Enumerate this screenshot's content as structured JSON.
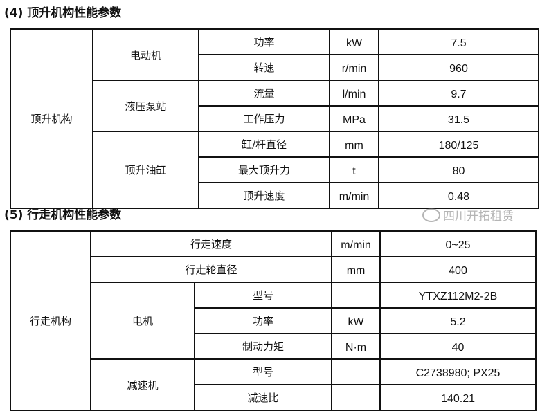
{
  "section4": {
    "title": "(4)  顶升机构性能参数",
    "group": "顶升机构",
    "subgroups": [
      "电动机",
      "液压泵站",
      "顶升油缸"
    ],
    "rows": [
      {
        "param": "功率",
        "unit": "kW",
        "value": "7.5"
      },
      {
        "param": "转速",
        "unit": "r/min",
        "value": "960"
      },
      {
        "param": "流量",
        "unit": "l/min",
        "value": "9.7"
      },
      {
        "param": "工作压力",
        "unit": "MPa",
        "value": "31.5"
      },
      {
        "param": "缸/杆直径",
        "unit": "mm",
        "value": "180/125"
      },
      {
        "param": "最大顶升力",
        "unit": "t",
        "value": "80"
      },
      {
        "param": "顶升速度",
        "unit": "m/min",
        "value": "0.48"
      }
    ]
  },
  "section5": {
    "title": "(5)  行走机构性能参数",
    "group": "行走机构",
    "subgroups": [
      "电机",
      "减速机"
    ],
    "rows": [
      {
        "param": "行走速度",
        "unit": "m/min",
        "value": "0~25"
      },
      {
        "param": "行走轮直径",
        "unit": "mm",
        "value": "400"
      },
      {
        "param": "型号",
        "unit": "",
        "value": "YTXZ112M2-2B"
      },
      {
        "param": "功率",
        "unit": "kW",
        "value": "5.2"
      },
      {
        "param": "制动力矩",
        "unit": "N·m",
        "value": "40"
      },
      {
        "param": "型号",
        "unit": "",
        "value": "C2738980; PX25"
      },
      {
        "param": "减速比",
        "unit": "",
        "value": "140.21"
      }
    ]
  },
  "watermark": "四川开拓租赁"
}
